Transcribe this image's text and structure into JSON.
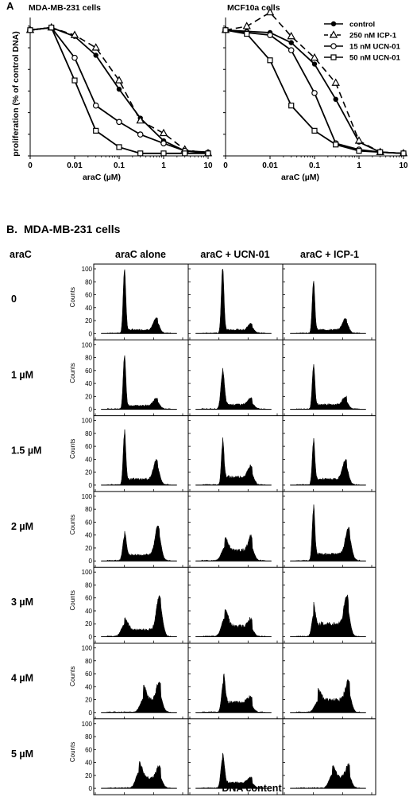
{
  "panel_a": {
    "letter": "A",
    "ylabel": "proliferation (% of control DNA)",
    "legend": [
      "control",
      "250 nM ICP-1",
      "15 nM UCN-01",
      "50 nM UCN-01"
    ]
  },
  "panel_b": {
    "letter": "B.",
    "title": "MDA-MB-231 cells",
    "row_header": "araC",
    "column_titles": [
      "araC alone",
      "araC + UCN-01",
      "araC + ICP-1"
    ],
    "row_labels": [
      "0",
      "1 µM",
      "1.5 µM",
      "2 µM",
      "3 µM",
      "4 µM",
      "5 µM"
    ],
    "counts_label": "Counts",
    "xlabel": "DNA content"
  },
  "chart_data": [
    {
      "type": "line",
      "title": "MDA-MB-231 cells",
      "xlabel": "araC (µM)",
      "ylabel": "proliferation (% of control DNA)",
      "x_scale": "log",
      "x_ticks": [
        "0",
        "0.01",
        "0.1",
        "1",
        "10"
      ],
      "x": [
        0,
        0.003,
        0.01,
        0.03,
        0.1,
        0.3,
        1,
        3,
        10
      ],
      "ylim": [
        0,
        100
      ],
      "y_ticks": [],
      "series": [
        {
          "name": "control",
          "values": [
            100,
            102,
            95,
            80,
            53,
            30,
            12,
            4,
            3
          ]
        },
        {
          "name": "250 nM ICP-1",
          "values": [
            100,
            102,
            96,
            86,
            60,
            28,
            18,
            5,
            2
          ]
        },
        {
          "name": "15 nM UCN-01",
          "values": [
            100,
            102,
            78,
            40,
            27,
            17,
            10,
            4,
            2
          ]
        },
        {
          "name": "50 nM UCN-01",
          "values": [
            100,
            102,
            60,
            20,
            7,
            2,
            2,
            2,
            2
          ]
        }
      ]
    },
    {
      "type": "line",
      "title": "MCF10a cells",
      "xlabel": "araC (µM)",
      "ylabel": "",
      "x_scale": "log",
      "x_ticks": [
        "0",
        "0.01",
        "0.1",
        "1",
        "10"
      ],
      "x": [
        0,
        0.003,
        0.01,
        0.03,
        0.1,
        0.3,
        1,
        3,
        10
      ],
      "ylim": [
        0,
        100
      ],
      "y_ticks": [],
      "series": [
        {
          "name": "control",
          "values": [
            100,
            99,
            98,
            90,
            73,
            45,
            11,
            3,
            2
          ]
        },
        {
          "name": "250 nM ICP-1",
          "values": [
            100,
            103,
            114,
            95,
            78,
            58,
            12,
            3,
            2
          ]
        },
        {
          "name": "15 nM UCN-01",
          "values": [
            100,
            98,
            96,
            84,
            50,
            10,
            5,
            3,
            2
          ]
        },
        {
          "name": "50 nM UCN-01",
          "values": [
            100,
            97,
            76,
            40,
            20,
            9,
            4,
            3,
            2
          ]
        }
      ]
    },
    {
      "type": "area",
      "title": "",
      "xlabel": "DNA content",
      "ylabel": "Counts",
      "xlim": [
        0,
        600
      ],
      "ylim": [
        0,
        100
      ],
      "x_ticks": [
        0,
        200,
        400,
        600
      ],
      "y_ticks": [
        0,
        20,
        40,
        60,
        80,
        100
      ],
      "rows": [
        "0",
        "1 µM",
        "1.5 µM",
        "2 µM",
        "3 µM",
        "4 µM",
        "5 µM"
      ],
      "columns": [
        "araC alone",
        "araC + UCN-01",
        "araC + ICP-1"
      ],
      "panels": [
        [
          {
            "g1_x": 200,
            "g1_h": 96,
            "g2_x": 420,
            "g2_h": 18,
            "s_h": 6
          },
          {
            "g1_x": 225,
            "g1_h": 100,
            "g2_x": 420,
            "g2_h": 10,
            "s_h": 6
          },
          {
            "g1_x": 200,
            "g1_h": 78,
            "g2_x": 420,
            "g2_h": 18,
            "s_h": 6
          }
        ],
        [
          {
            "g1_x": 200,
            "g1_h": 80,
            "g2_x": 420,
            "g2_h": 12,
            "s_h": 6
          },
          {
            "g1_x": 225,
            "g1_h": 55,
            "g2_x": 420,
            "g2_h": 10,
            "s_h": 8
          },
          {
            "g1_x": 200,
            "g1_h": 65,
            "g2_x": 420,
            "g2_h": 12,
            "s_h": 8
          }
        ],
        [
          {
            "g1_x": 200,
            "g1_h": 78,
            "g2_x": 420,
            "g2_h": 30,
            "s_h": 10
          },
          {
            "g1_x": 225,
            "g1_h": 62,
            "g2_x": 420,
            "g2_h": 18,
            "s_h": 14
          },
          {
            "g1_x": 200,
            "g1_h": 65,
            "g2_x": 420,
            "g2_h": 30,
            "s_h": 10
          }
        ],
        [
          {
            "g1_x": 200,
            "g1_h": 36,
            "g2_x": 430,
            "g2_h": 45,
            "s_h": 10
          },
          {
            "g1_x": 240,
            "g1_h": 20,
            "g2_x": 420,
            "g2_h": 22,
            "s_h": 18
          },
          {
            "g1_x": 200,
            "g1_h": 78,
            "g2_x": 440,
            "g2_h": 40,
            "s_h": 12
          }
        ],
        [
          {
            "g1_x": 200,
            "g1_h": 18,
            "g2_x": 440,
            "g2_h": 52,
            "s_h": 12
          },
          {
            "g1_x": 240,
            "g1_h": 28,
            "g2_x": 420,
            "g2_h": 12,
            "s_h": 18
          },
          {
            "g1_x": 200,
            "g1_h": 32,
            "g2_x": 430,
            "g2_h": 44,
            "s_h": 22
          }
        ],
        [
          {
            "g1_x": 330,
            "g1_h": 20,
            "g2_x": 440,
            "g2_h": 28,
            "s_h": 22
          },
          {
            "g1_x": 230,
            "g1_h": 45,
            "g2_x": 420,
            "g2_h": 10,
            "s_h": 18
          },
          {
            "g1_x": 230,
            "g1_h": 16,
            "g2_x": 440,
            "g2_h": 30,
            "s_h": 22
          }
        ],
        [
          {
            "g1_x": 300,
            "g1_h": 24,
            "g2_x": 440,
            "g2_h": 18,
            "s_h": 18
          },
          {
            "g1_x": 225,
            "g1_h": 45,
            "g2_x": 420,
            "g2_h": 8,
            "s_h": 10
          },
          {
            "g1_x": 330,
            "g1_h": 20,
            "g2_x": 440,
            "g2_h": 20,
            "s_h": 18
          }
        ]
      ]
    }
  ]
}
